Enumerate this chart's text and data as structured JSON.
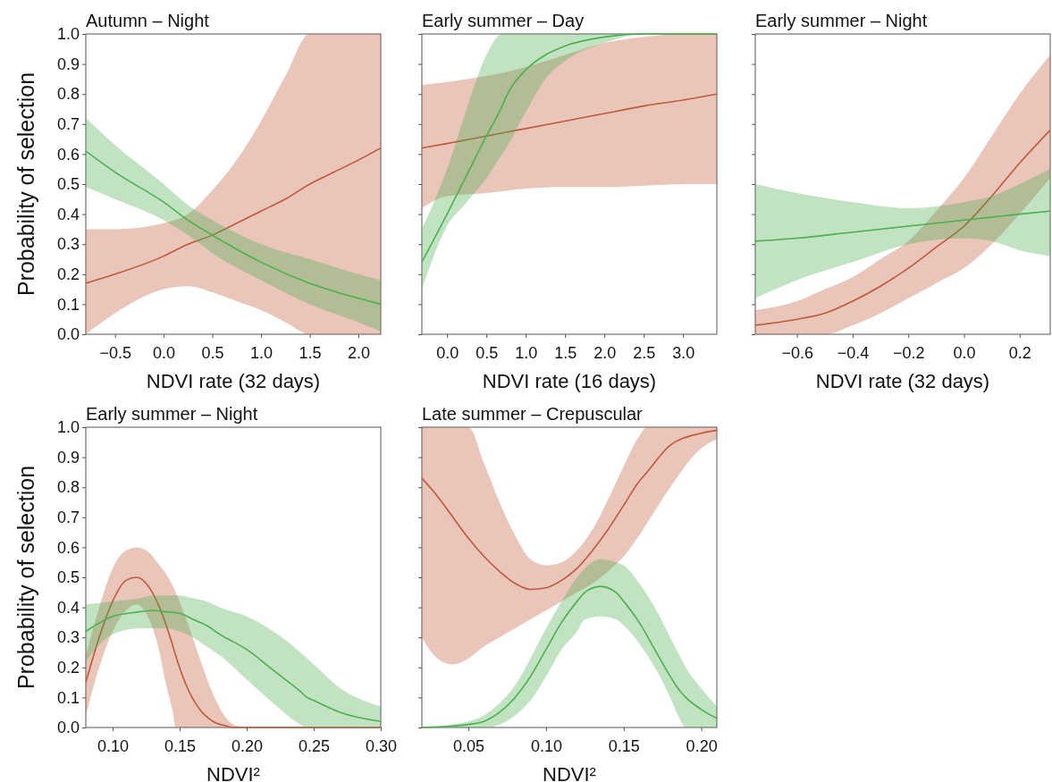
{
  "chart_data": [
    {
      "type": "line",
      "title": "Autumn – Night",
      "xlabel": "NDVI rate (32 days)",
      "ylabel": "Probability of selection",
      "xlim": [
        -0.8,
        2.23
      ],
      "xticks": [
        {
          "value": -0.5,
          "label": "−0.5"
        },
        {
          "value": 0,
          "label": "0.0"
        },
        {
          "value": 0.5,
          "label": "0.5"
        },
        {
          "value": 1,
          "label": "1.0"
        },
        {
          "value": 1.5,
          "label": "1.5"
        },
        {
          "value": 2,
          "label": "2.0"
        }
      ],
      "ylim": [
        0,
        1
      ],
      "yticks": [
        {
          "value": 0,
          "label": "0.0"
        },
        {
          "value": 0.1,
          "label": "0.1"
        },
        {
          "value": 0.2,
          "label": "0.2"
        },
        {
          "value": 0.3,
          "label": "0.3"
        },
        {
          "value": 0.4,
          "label": "0.4"
        },
        {
          "value": 0.5,
          "label": "0.5"
        },
        {
          "value": 0.6,
          "label": "0.6"
        },
        {
          "value": 0.7,
          "label": "0.7"
        },
        {
          "value": 0.8,
          "label": "0.8"
        },
        {
          "value": 0.9,
          "label": "0.9"
        },
        {
          "value": 1,
          "label": "1.0"
        }
      ],
      "series": [
        {
          "color": "#c0583a",
          "x": [
            -0.8,
            -0.5,
            0,
            0.25,
            0.5,
            0.75,
            1,
            1.25,
            1.5,
            1.75,
            2,
            2.23
          ],
          "values": [
            0.17,
            0.2,
            0.26,
            0.3,
            0.33,
            0.37,
            0.41,
            0.45,
            0.5,
            0.54,
            0.58,
            0.62
          ],
          "lower": [
            0,
            0.07,
            0.15,
            0.16,
            0.14,
            0.11,
            0.08,
            0.04,
            0,
            0,
            0,
            0
          ],
          "upper": [
            0.35,
            0.35,
            0.37,
            0.4,
            0.48,
            0.58,
            0.71,
            0.86,
            1,
            1,
            1,
            1
          ]
        },
        {
          "color": "#4caf50",
          "x": [
            -0.8,
            -0.5,
            0,
            0.25,
            0.5,
            1,
            1.5,
            2,
            2.23
          ],
          "values": [
            0.61,
            0.54,
            0.44,
            0.38,
            0.33,
            0.24,
            0.17,
            0.12,
            0.1
          ],
          "lower": [
            0.49,
            0.45,
            0.38,
            0.33,
            0.27,
            0.18,
            0.1,
            0.04,
            0.01
          ],
          "upper": [
            0.72,
            0.63,
            0.5,
            0.43,
            0.38,
            0.3,
            0.25,
            0.2,
            0.18
          ]
        }
      ]
    },
    {
      "type": "line",
      "title": "Early summer – Day",
      "xlabel": "NDVI rate (16 days)",
      "tick_labels": "x",
      "xlim": [
        -0.32,
        3.43
      ],
      "xticks": [
        {
          "value": 0,
          "label": "0.0"
        },
        {
          "value": 0.5,
          "label": "0.5"
        },
        {
          "value": 1,
          "label": "1.0"
        },
        {
          "value": 1.5,
          "label": "1.5"
        },
        {
          "value": 2,
          "label": "2.0"
        },
        {
          "value": 2.5,
          "label": "2.5"
        },
        {
          "value": 3,
          "label": "3.0"
        }
      ],
      "ylim": [
        0,
        1
      ],
      "yticks": [
        {
          "value": 0,
          "label": null
        },
        {
          "value": 0.1,
          "label": null
        },
        {
          "value": 0.2,
          "label": null
        },
        {
          "value": 0.3,
          "label": null
        },
        {
          "value": 0.4,
          "label": null
        },
        {
          "value": 0.5,
          "label": null
        },
        {
          "value": 0.6,
          "label": null
        },
        {
          "value": 0.7,
          "label": null
        },
        {
          "value": 0.8,
          "label": null
        },
        {
          "value": 0.9,
          "label": null
        },
        {
          "value": 1,
          "label": null
        }
      ],
      "series": [
        {
          "color": "#c0583a",
          "x": [
            -0.32,
            0,
            0.5,
            1,
            1.5,
            2,
            2.5,
            3,
            3.43
          ],
          "values": [
            0.62,
            0.635,
            0.66,
            0.685,
            0.71,
            0.735,
            0.76,
            0.78,
            0.8
          ],
          "lower": [
            0.42,
            0.46,
            0.47,
            0.485,
            0.49,
            0.49,
            0.495,
            0.5,
            0.5
          ],
          "upper": [
            0.83,
            0.84,
            0.86,
            0.89,
            0.93,
            0.97,
            0.99,
            1,
            1
          ]
        },
        {
          "color": "#4caf50",
          "x": [
            -0.32,
            0,
            0.25,
            0.5,
            0.7,
            0.75,
            1,
            1.25,
            1.5,
            2,
            2.5,
            3.43
          ],
          "values": [
            0.24,
            0.4,
            0.53,
            0.66,
            0.76,
            0.79,
            0.88,
            0.93,
            0.96,
            0.99,
            1,
            1
          ],
          "lower": [
            0.15,
            0.36,
            0.44,
            0.52,
            0.6,
            0.62,
            0.74,
            0.85,
            0.91,
            0.97,
            1,
            1
          ],
          "upper": [
            0.35,
            0.55,
            0.75,
            0.93,
            1,
            1,
            1,
            1,
            1,
            1,
            1,
            1
          ]
        }
      ]
    },
    {
      "type": "line",
      "title": "Early summer – Night",
      "xlabel": "NDVI rate (32 days)",
      "tick_labels": "x",
      "xlim": [
        -0.75,
        0.31
      ],
      "xticks": [
        {
          "value": -0.6,
          "label": "−0.6"
        },
        {
          "value": -0.4,
          "label": "−0.4"
        },
        {
          "value": -0.2,
          "label": "−0.2"
        },
        {
          "value": 0,
          "label": "0.0"
        },
        {
          "value": 0.2,
          "label": "0.2"
        }
      ],
      "ylim": [
        0,
        1
      ],
      "yticks": [
        {
          "value": 0,
          "label": null
        },
        {
          "value": 0.1,
          "label": null
        },
        {
          "value": 0.2,
          "label": null
        },
        {
          "value": 0.3,
          "label": null
        },
        {
          "value": 0.4,
          "label": null
        },
        {
          "value": 0.5,
          "label": null
        },
        {
          "value": 0.6,
          "label": null
        },
        {
          "value": 0.7,
          "label": null
        },
        {
          "value": 0.8,
          "label": null
        },
        {
          "value": 0.9,
          "label": null
        },
        {
          "value": 1,
          "label": null
        }
      ],
      "series": [
        {
          "color": "#c0583a",
          "x": [
            -0.75,
            -0.6,
            -0.5,
            -0.4,
            -0.3,
            -0.2,
            -0.1,
            0,
            0.1,
            0.2,
            0.31
          ],
          "values": [
            0.03,
            0.05,
            0.07,
            0.11,
            0.16,
            0.22,
            0.29,
            0.36,
            0.46,
            0.57,
            0.68
          ],
          "lower": [
            0,
            0,
            0,
            0.03,
            0.07,
            0.12,
            0.17,
            0.22,
            0.3,
            0.4,
            0.52
          ],
          "upper": [
            0.08,
            0.11,
            0.15,
            0.19,
            0.25,
            0.31,
            0.41,
            0.52,
            0.66,
            0.8,
            0.93
          ]
        },
        {
          "color": "#4caf50",
          "x": [
            -0.75,
            -0.6,
            -0.4,
            -0.2,
            0,
            0.1,
            0.2,
            0.31
          ],
          "values": [
            0.31,
            0.32,
            0.34,
            0.36,
            0.38,
            0.39,
            0.4,
            0.41
          ],
          "lower": [
            0.12,
            0.18,
            0.24,
            0.3,
            0.32,
            0.31,
            0.28,
            0.26
          ],
          "upper": [
            0.5,
            0.47,
            0.44,
            0.42,
            0.44,
            0.46,
            0.5,
            0.55
          ]
        }
      ]
    },
    {
      "type": "line",
      "title": "Early summer – Night",
      "xlabel": "NDVI²",
      "ylabel": "Probability of selection",
      "xlim": [
        0.08,
        0.3
      ],
      "xticks": [
        {
          "value": 0.1,
          "label": "0.10"
        },
        {
          "value": 0.15,
          "label": "0.15"
        },
        {
          "value": 0.2,
          "label": "0.20"
        },
        {
          "value": 0.25,
          "label": "0.25"
        },
        {
          "value": 0.3,
          "label": "0.30"
        }
      ],
      "ylim": [
        0,
        1
      ],
      "yticks": [
        {
          "value": 0,
          "label": "0.0"
        },
        {
          "value": 0.1,
          "label": "0.1"
        },
        {
          "value": 0.2,
          "label": "0.2"
        },
        {
          "value": 0.3,
          "label": "0.3"
        },
        {
          "value": 0.4,
          "label": "0.4"
        },
        {
          "value": 0.5,
          "label": "0.5"
        },
        {
          "value": 0.6,
          "label": "0.6"
        },
        {
          "value": 0.7,
          "label": "0.7"
        },
        {
          "value": 0.8,
          "label": "0.8"
        },
        {
          "value": 0.9,
          "label": "0.9"
        },
        {
          "value": 1,
          "label": "1.0"
        }
      ],
      "series": [
        {
          "color": "#c0583a",
          "x": [
            0.08,
            0.09,
            0.1,
            0.11,
            0.118,
            0.125,
            0.135,
            0.14,
            0.145,
            0.147,
            0.155,
            0.165,
            0.175,
            0.185,
            0.19,
            0.2,
            0.3
          ],
          "values": [
            0.15,
            0.3,
            0.42,
            0.49,
            0.5,
            0.48,
            0.4,
            0.34,
            0.27,
            0.24,
            0.14,
            0.06,
            0.02,
            0.005,
            0,
            0,
            0
          ],
          "lower": [
            0.04,
            0.2,
            0.32,
            0.39,
            0.41,
            0.38,
            0.25,
            0.14,
            0.05,
            0,
            0,
            0,
            0,
            0,
            0,
            0,
            0
          ],
          "upper": [
            0.24,
            0.4,
            0.53,
            0.59,
            0.6,
            0.59,
            0.54,
            0.51,
            0.47,
            0.45,
            0.36,
            0.23,
            0.11,
            0.03,
            0.01,
            0,
            0
          ]
        },
        {
          "color": "#4caf50",
          "x": [
            0.08,
            0.1,
            0.12,
            0.13,
            0.14,
            0.15,
            0.16,
            0.17,
            0.18,
            0.2,
            0.22,
            0.24,
            0.245,
            0.25,
            0.27,
            0.3
          ],
          "values": [
            0.32,
            0.37,
            0.385,
            0.39,
            0.385,
            0.38,
            0.36,
            0.34,
            0.31,
            0.26,
            0.19,
            0.12,
            0.1,
            0.09,
            0.05,
            0.02
          ],
          "lower": [
            0.22,
            0.31,
            0.33,
            0.33,
            0.33,
            0.32,
            0.3,
            0.27,
            0.24,
            0.16,
            0.08,
            0.01,
            0,
            0,
            0,
            0
          ],
          "upper": [
            0.41,
            0.42,
            0.43,
            0.44,
            0.44,
            0.44,
            0.43,
            0.42,
            0.4,
            0.37,
            0.32,
            0.25,
            0.23,
            0.21,
            0.13,
            0.07
          ]
        }
      ]
    },
    {
      "type": "line",
      "title": "Late summer – Crepuscular",
      "xlabel": "NDVI²",
      "tick_labels": "x",
      "xlim": [
        0.02,
        0.21
      ],
      "xticks": [
        {
          "value": 0.05,
          "label": "0.05"
        },
        {
          "value": 0.1,
          "label": "0.10"
        },
        {
          "value": 0.15,
          "label": "0.15"
        },
        {
          "value": 0.2,
          "label": "0.20"
        }
      ],
      "ylim": [
        0,
        1
      ],
      "yticks": [
        {
          "value": 0,
          "label": null
        },
        {
          "value": 0.1,
          "label": null
        },
        {
          "value": 0.2,
          "label": null
        },
        {
          "value": 0.3,
          "label": null
        },
        {
          "value": 0.4,
          "label": null
        },
        {
          "value": 0.5,
          "label": null
        },
        {
          "value": 0.6,
          "label": null
        },
        {
          "value": 0.7,
          "label": null
        },
        {
          "value": 0.8,
          "label": null
        },
        {
          "value": 0.9,
          "label": null
        },
        {
          "value": 1,
          "label": null
        }
      ],
      "series": [
        {
          "color": "#c0583a",
          "x": [
            0.02,
            0.03,
            0.04,
            0.05,
            0.06,
            0.07,
            0.08,
            0.09,
            0.1,
            0.11,
            0.12,
            0.13,
            0.14,
            0.15,
            0.16,
            0.165,
            0.18,
            0.2,
            0.21
          ],
          "values": [
            0.83,
            0.77,
            0.7,
            0.63,
            0.57,
            0.52,
            0.48,
            0.46,
            0.465,
            0.49,
            0.53,
            0.59,
            0.66,
            0.74,
            0.82,
            0.85,
            0.94,
            0.98,
            0.99
          ],
          "lower": [
            0.3,
            0.23,
            0.21,
            0.23,
            0.27,
            0.3,
            0.33,
            0.36,
            0.39,
            0.42,
            0.45,
            0.48,
            0.52,
            0.57,
            0.64,
            0.68,
            0.8,
            0.93,
            0.96
          ],
          "upper": [
            1,
            1,
            1,
            1,
            0.88,
            0.75,
            0.64,
            0.56,
            0.54,
            0.55,
            0.59,
            0.66,
            0.76,
            0.87,
            0.97,
            1,
            1,
            1,
            1
          ]
        },
        {
          "color": "#4caf50",
          "x": [
            0.02,
            0.04,
            0.05,
            0.06,
            0.07,
            0.08,
            0.09,
            0.1,
            0.11,
            0.12,
            0.125,
            0.135,
            0.145,
            0.15,
            0.16,
            0.17,
            0.18,
            0.185,
            0.19,
            0.2,
            0.21
          ],
          "values": [
            0,
            0.005,
            0.01,
            0.02,
            0.05,
            0.1,
            0.17,
            0.26,
            0.35,
            0.42,
            0.45,
            0.47,
            0.45,
            0.42,
            0.35,
            0.26,
            0.17,
            0.13,
            0.1,
            0.06,
            0.03
          ],
          "lower": [
            0,
            0,
            0,
            0,
            0.01,
            0.04,
            0.09,
            0.17,
            0.26,
            0.32,
            0.36,
            0.37,
            0.36,
            0.34,
            0.28,
            0.2,
            0.1,
            0.04,
            0,
            0,
            0
          ],
          "upper": [
            0,
            0.01,
            0.02,
            0.04,
            0.08,
            0.14,
            0.23,
            0.33,
            0.42,
            0.5,
            0.53,
            0.56,
            0.55,
            0.54,
            0.48,
            0.4,
            0.3,
            0.25,
            0.2,
            0.13,
            0.07
          ]
        }
      ]
    }
  ]
}
